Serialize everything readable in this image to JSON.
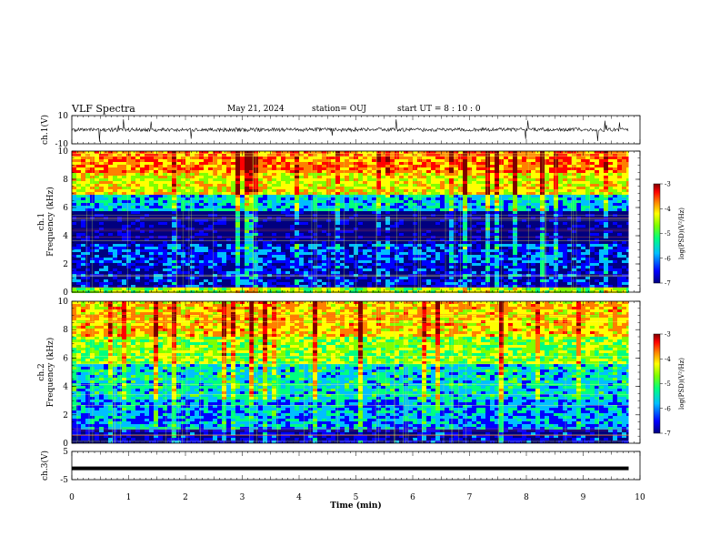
{
  "header": {
    "title": "VLF Spectra",
    "date": "May 21, 2024",
    "station": "station= OUJ",
    "start": "start  UT =  8 : 10 : 0"
  },
  "chart_data": [
    {
      "type": "line",
      "name": "ch1-waveform",
      "ylabel": "ch.1(V)",
      "ylim": [
        -10,
        10
      ],
      "yticks": [
        "10",
        "-10"
      ],
      "xlim": [
        0,
        10
      ],
      "baseline": 0,
      "data_extent_min": 9.8
    },
    {
      "type": "heatmap",
      "name": "ch1-spectrogram",
      "ylabel": "ch.1\nFrequency (kHz)",
      "ylabel_top": "ch.1",
      "ylabel_bottom": "Frequency  (kHz)",
      "ylim": [
        0,
        10
      ],
      "yticks": [
        "0",
        "2",
        "4",
        "6",
        "8",
        "10"
      ],
      "xlim": [
        0,
        10
      ],
      "data_extent_min": 9.8,
      "colorbar": {
        "label": "log(PSD)(V²/Hz)",
        "range": [
          -7,
          -3
        ],
        "ticks": [
          "-3",
          "-4",
          "-5",
          "-6",
          "-7"
        ]
      },
      "bands_khz": [
        {
          "from": 0.0,
          "to": 0.4,
          "level": -5.0
        },
        {
          "from": 0.4,
          "to": 2.0,
          "level": -6.5
        },
        {
          "from": 2.0,
          "to": 3.5,
          "level": -6.3
        },
        {
          "from": 3.5,
          "to": 5.8,
          "level": -6.9
        },
        {
          "from": 5.8,
          "to": 7.0,
          "level": -5.8
        },
        {
          "from": 7.0,
          "to": 8.5,
          "level": -4.6
        },
        {
          "from": 8.5,
          "to": 10.0,
          "level": -4.1
        }
      ]
    },
    {
      "type": "heatmap",
      "name": "ch2-spectrogram",
      "ylabel": "ch.2\nFrequency (kHz)",
      "ylabel_top": "ch.2",
      "ylabel_bottom": "Frequency  (kHz)",
      "ylim": [
        0,
        10
      ],
      "yticks": [
        "0",
        "2",
        "4",
        "6",
        "8",
        "10"
      ],
      "xlim": [
        0,
        10
      ],
      "data_extent_min": 9.8,
      "colorbar": {
        "label": "log(PSD)(V²/Hz)",
        "range": [
          -7,
          -3
        ],
        "ticks": [
          "-3",
          "-4",
          "-5",
          "-6",
          "-7"
        ]
      },
      "bands_khz": [
        {
          "from": 0.0,
          "to": 1.0,
          "level": -6.6
        },
        {
          "from": 1.0,
          "to": 3.0,
          "level": -6.0
        },
        {
          "from": 3.0,
          "to": 5.5,
          "level": -5.7
        },
        {
          "from": 5.5,
          "to": 7.5,
          "level": -5.0
        },
        {
          "from": 7.5,
          "to": 10.0,
          "level": -4.4
        }
      ]
    },
    {
      "type": "line",
      "name": "ch3-waveform",
      "ylabel": "ch.3(V)",
      "ylim": [
        -5,
        5
      ],
      "yticks": [
        "5",
        "-5"
      ],
      "xlim": [
        0,
        10
      ],
      "baseline": -1,
      "data_extent_min": 9.8
    }
  ],
  "xaxis": {
    "label": "Time  (min)",
    "ticks": [
      "0",
      "1",
      "2",
      "3",
      "4",
      "5",
      "6",
      "7",
      "8",
      "9",
      "10"
    ]
  },
  "colors": {
    "cmap": [
      "#00007f",
      "#0000ff",
      "#00bfff",
      "#00ff7f",
      "#7fff00",
      "#ffff00",
      "#ff7f00",
      "#ff0000",
      "#7f0000"
    ]
  }
}
